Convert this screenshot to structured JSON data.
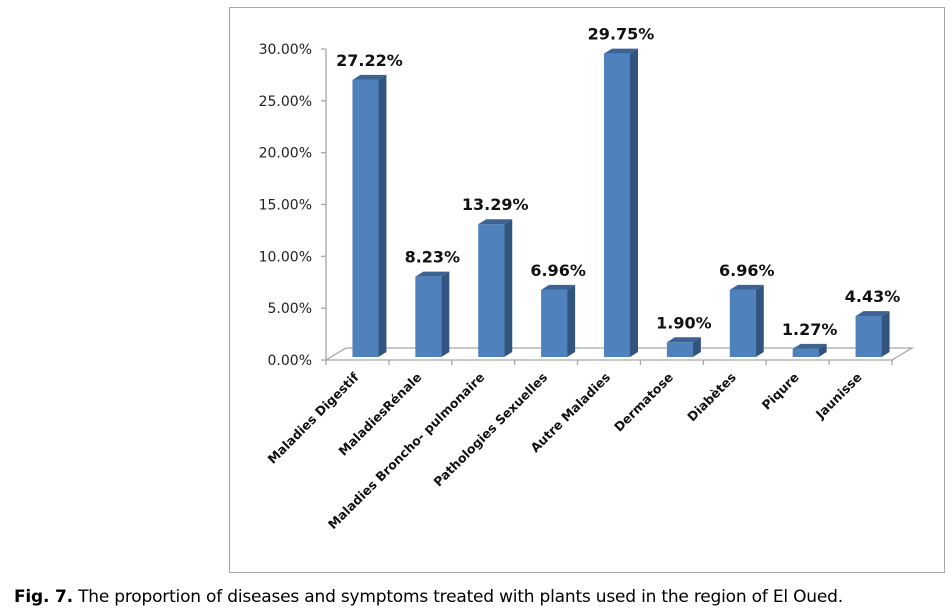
{
  "chart_data": {
    "type": "bar",
    "style": "3d-column",
    "title": "",
    "xlabel": "",
    "ylabel": "",
    "ylim": [
      0,
      30
    ],
    "yticks": [
      "0.00%",
      "5.00%",
      "10.00%",
      "15.00%",
      "20.00%",
      "25.00%",
      "30.00%"
    ],
    "ytick_values": [
      0,
      5,
      10,
      15,
      20,
      25,
      30
    ],
    "grid": false,
    "legend": "none",
    "categories": [
      "Maladies Digestif",
      "MaladiesRénale",
      "Maladies Broncho- pulmonaire",
      "Pathologies Sexuelles",
      "Autre Maladies",
      "Dermatose",
      "Diabètes",
      "Piqure",
      "Jaunisse"
    ],
    "values": [
      27.22,
      8.23,
      13.29,
      6.96,
      29.75,
      1.9,
      6.96,
      1.27,
      4.43
    ],
    "data_labels": [
      "27.22%",
      "8.23%",
      "13.29%",
      "6.96%",
      "29.75%",
      "1.90%",
      "6.96%",
      "1.27%",
      "4.43%"
    ],
    "colors": {
      "bar_front": "#4f81bd",
      "bar_side": "#31557f",
      "bar_top": "#3b6393",
      "axis": "#a6a6a6"
    }
  },
  "caption": {
    "label": "Fig. 7.",
    "text": " The proportion of diseases and symptoms treated with plants used in the region of El Oued."
  }
}
